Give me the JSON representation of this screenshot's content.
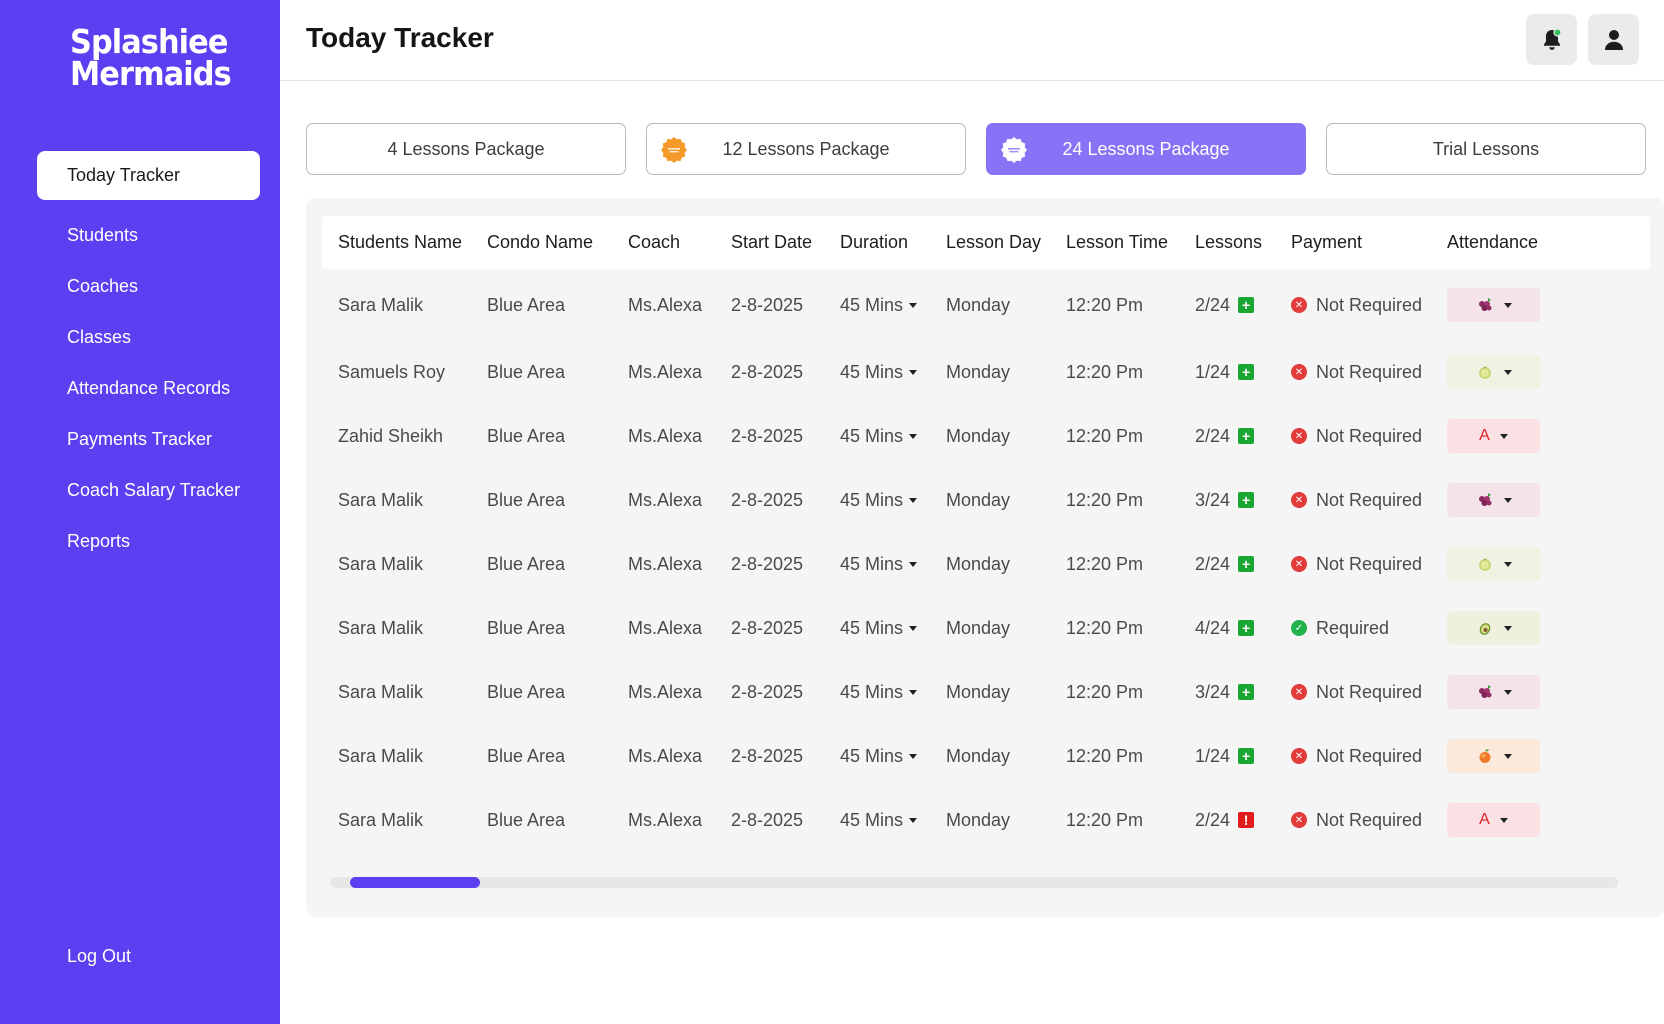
{
  "brand": {
    "line1": "Splashiee",
    "line2": "Mermaids"
  },
  "sidebar": {
    "items": [
      {
        "label": "Today Tracker",
        "active": true
      },
      {
        "label": "Students"
      },
      {
        "label": "Coaches"
      },
      {
        "label": "Classes"
      },
      {
        "label": "Attendance Records"
      },
      {
        "label": "Payments Tracker"
      },
      {
        "label": "Coach Salary Tracker"
      },
      {
        "label": "Reports"
      }
    ],
    "logout": "Log Out"
  },
  "header": {
    "title": "Today Tracker"
  },
  "tabs": [
    {
      "label": "4 Lessons Package",
      "badge": null
    },
    {
      "label": "12 Lessons Package",
      "badge": "orange-burst-badge-icon"
    },
    {
      "label": "24 Lessons Package",
      "badge": "white-burst-badge-icon",
      "active": true
    },
    {
      "label": "Trial Lessons",
      "badge": null
    }
  ],
  "table": {
    "columns": [
      "Students Name",
      "Condo Name",
      "Coach",
      "Start Date",
      "Duration",
      "Lesson Day",
      "Lesson Time",
      "Lessons",
      "Payment",
      "Attendance"
    ],
    "rows": [
      {
        "name": "Sara Malik",
        "condo": "Blue Area",
        "coach": "Ms.Alexa",
        "start": "2-8-2025",
        "duration": "45 Mins",
        "day": "Monday",
        "time": "12:20 Pm",
        "lessons": "2/24",
        "lessons_flag": "plus",
        "payment": "Not Required",
        "paid": false,
        "attendance": "grapes"
      },
      {
        "name": "Samuels Roy",
        "condo": "Blue Area",
        "coach": "Ms.Alexa",
        "start": "2-8-2025",
        "duration": "45 Mins",
        "day": "Monday",
        "time": "12:20 Pm",
        "lessons": "1/24",
        "lessons_flag": "plus",
        "payment": "Not Required",
        "paid": false,
        "attendance": "melon"
      },
      {
        "name": "Zahid Sheikh",
        "condo": "Blue Area",
        "coach": "Ms.Alexa",
        "start": "2-8-2025",
        "duration": "45 Mins",
        "day": "Monday",
        "time": "12:20 Pm",
        "lessons": "2/24",
        "lessons_flag": "plus",
        "payment": "Not Required",
        "paid": false,
        "attendance": "A"
      },
      {
        "name": "Sara Malik",
        "condo": "Blue Area",
        "coach": "Ms.Alexa",
        "start": "2-8-2025",
        "duration": "45 Mins",
        "day": "Monday",
        "time": "12:20 Pm",
        "lessons": "3/24",
        "lessons_flag": "plus",
        "payment": "Not Required",
        "paid": false,
        "attendance": "grapes"
      },
      {
        "name": "Sara Malik",
        "condo": "Blue Area",
        "coach": "Ms.Alexa",
        "start": "2-8-2025",
        "duration": "45 Mins",
        "day": "Monday",
        "time": "12:20 Pm",
        "lessons": "2/24",
        "lessons_flag": "plus",
        "payment": "Not Required",
        "paid": false,
        "attendance": "melon"
      },
      {
        "name": "Sara Malik",
        "condo": "Blue Area",
        "coach": "Ms.Alexa",
        "start": "2-8-2025",
        "duration": "45 Mins",
        "day": "Monday",
        "time": "12:20 Pm",
        "lessons": "4/24",
        "lessons_flag": "plus",
        "payment": "Required",
        "paid": true,
        "attendance": "avocado"
      },
      {
        "name": "Sara Malik",
        "condo": "Blue Area",
        "coach": "Ms.Alexa",
        "start": "2-8-2025",
        "duration": "45 Mins",
        "day": "Monday",
        "time": "12:20 Pm",
        "lessons": "3/24",
        "lessons_flag": "plus",
        "payment": "Not Required",
        "paid": false,
        "attendance": "grapes"
      },
      {
        "name": "Sara Malik",
        "condo": "Blue Area",
        "coach": "Ms.Alexa",
        "start": "2-8-2025",
        "duration": "45 Mins",
        "day": "Monday",
        "time": "12:20 Pm",
        "lessons": "1/24",
        "lessons_flag": "plus",
        "payment": "Not Required",
        "paid": false,
        "attendance": "peach"
      },
      {
        "name": "Sara Malik",
        "condo": "Blue Area",
        "coach": "Ms.Alexa",
        "start": "2-8-2025",
        "duration": "45 Mins",
        "day": "Monday",
        "time": "12:20 Pm",
        "lessons": "2/24",
        "lessons_flag": "alert",
        "payment": "Not Required",
        "paid": false,
        "attendance": "A"
      }
    ]
  },
  "scroll": {
    "position": 0.0
  },
  "colors": {
    "brand": "#5b3ff0",
    "active_tab": "#8a72f6",
    "plus_green": "#19a632",
    "alert_red": "#e21c1c",
    "not_required_red": "#e23c3c",
    "required_green": "#22b24c"
  },
  "icons": {
    "notification": "bell-icon",
    "profile": "user-icon"
  }
}
